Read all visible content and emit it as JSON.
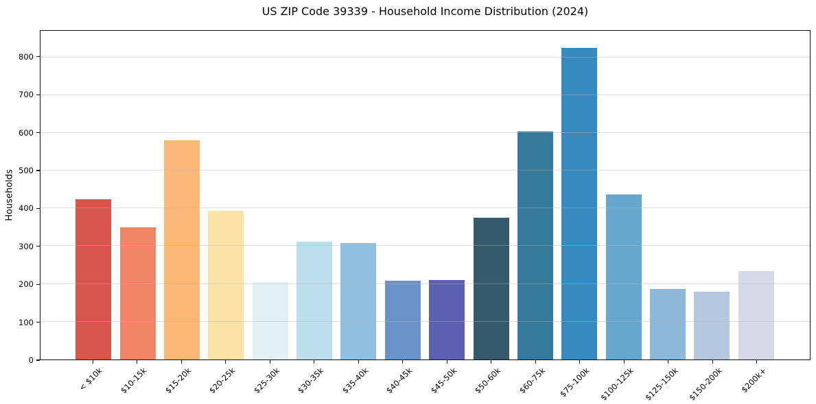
{
  "chart_data": {
    "type": "bar",
    "title": "US ZIP Code 39339 - Household Income Distribution (2024)",
    "xlabel": "",
    "ylabel": "Households",
    "categories": [
      "< $10k",
      "$10-15k",
      "$15-20k",
      "$20-25k",
      "$25-30k",
      "$30-35k",
      "$35-40k",
      "$40-45k",
      "$45-50k",
      "$50-60k",
      "$60-75k",
      "$75-100k",
      "$100-125k",
      "$125-150k",
      "$150-200k",
      "$200k+"
    ],
    "values": [
      425,
      350,
      580,
      394,
      204,
      311,
      308,
      208,
      210,
      375,
      603,
      825,
      437,
      187,
      180,
      233
    ],
    "bar_colors": [
      "#d6564d",
      "#f18567",
      "#fbb878",
      "#fce3a7",
      "#e3f0f5",
      "#bddeed",
      "#90c0de",
      "#6b93ca",
      "#5d60af",
      "#355a6c",
      "#357a9b",
      "#368abd",
      "#66a7cd",
      "#8eb8da",
      "#b5c8e0",
      "#d7d9e8"
    ],
    "ylim": [
      0,
      870
    ],
    "yticks": [
      0,
      100,
      200,
      300,
      400,
      500,
      600,
      700,
      800
    ],
    "grid": "horizontal",
    "legend": "none",
    "background_color": "#ffffff",
    "gridline_color": "#eaeaec",
    "axis_frame_color": "#0d0d0d",
    "text_color": "#000000"
  }
}
